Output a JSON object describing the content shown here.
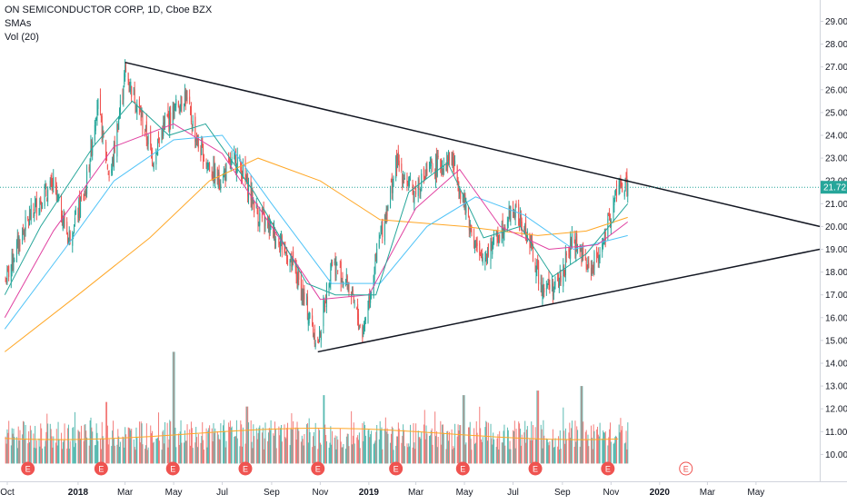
{
  "legend": {
    "symbol_line": "ON SEMICONDUCTOR CORP, 1D, Cboe BZX",
    "indicator_1": "SMAs",
    "indicator_2": "Vol (20)"
  },
  "price_axis": {
    "ticks": [
      "29.00",
      "28.00",
      "27.00",
      "26.00",
      "25.00",
      "24.00",
      "23.00",
      "22.00",
      "21.00",
      "20.00",
      "19.00",
      "18.00",
      "17.00",
      "16.00",
      "15.00",
      "14.00",
      "13.00",
      "12.00",
      "11.00",
      "10.00"
    ],
    "last_price_label": "21.72"
  },
  "time_axis": {
    "ticks": [
      "Oct",
      "2018",
      "Mar",
      "May",
      "Jul",
      "Sep",
      "Nov",
      "2019",
      "Mar",
      "May",
      "Jul",
      "Sep",
      "Nov",
      "2020",
      "Mar",
      "May"
    ]
  },
  "earnings_marker_label": "E",
  "colors": {
    "up": "#26a69a",
    "down": "#ef5350",
    "vol_up": "#26a69a",
    "vol_down": "#ef5350",
    "sma_teal": "#26a69a",
    "sma_pink": "#e040a0",
    "sma_blue": "#4fc3f7",
    "sma_orange": "#ffa726",
    "trendline": "#131722",
    "last_price_bg": "#26a69a",
    "earnings_past": "#ef5350",
    "earnings_future": "#ef5350"
  },
  "chart_data": {
    "type": "candlestick",
    "symbol": "ON SEMICONDUCTOR CORP",
    "interval": "1D",
    "exchange": "Cboe BZX",
    "y_range": [
      9.5,
      29.5
    ],
    "last_price": 21.72,
    "price_path": [
      [
        "2017-10-01",
        17.5
      ],
      [
        "2017-10-20",
        19.5
      ],
      [
        "2017-11-10",
        21.0
      ],
      [
        "2017-12-01",
        21.8
      ],
      [
        "2017-12-20",
        19.5
      ],
      [
        "2018-01-10",
        21.5
      ],
      [
        "2018-01-25",
        25.5
      ],
      [
        "2018-02-10",
        22.0
      ],
      [
        "2018-03-01",
        26.8
      ],
      [
        "2018-03-15",
        25.5
      ],
      [
        "2018-04-05",
        23.0
      ],
      [
        "2018-04-20",
        24.5
      ],
      [
        "2018-05-15",
        25.8
      ],
      [
        "2018-06-01",
        23.5
      ],
      [
        "2018-06-25",
        22.0
      ],
      [
        "2018-07-20",
        23.0
      ],
      [
        "2018-08-15",
        20.5
      ],
      [
        "2018-09-10",
        19.5
      ],
      [
        "2018-10-01",
        18.0
      ],
      [
        "2018-10-29",
        14.8
      ],
      [
        "2018-11-15",
        18.5
      ],
      [
        "2018-12-05",
        17.5
      ],
      [
        "2018-12-24",
        15.3
      ],
      [
        "2019-01-15",
        19.5
      ],
      [
        "2019-02-05",
        22.8
      ],
      [
        "2019-02-25",
        21.5
      ],
      [
        "2019-03-20",
        22.5
      ],
      [
        "2019-04-15",
        23.0
      ],
      [
        "2019-05-05",
        20.5
      ],
      [
        "2019-05-20",
        18.5
      ],
      [
        "2019-06-10",
        19.5
      ],
      [
        "2019-07-01",
        20.8
      ],
      [
        "2019-07-20",
        19.5
      ],
      [
        "2019-08-05",
        17.5
      ],
      [
        "2019-08-25",
        17.3
      ],
      [
        "2019-09-15",
        19.5
      ],
      [
        "2019-10-05",
        18.0
      ],
      [
        "2019-10-25",
        19.5
      ],
      [
        "2019-11-10",
        21.8
      ],
      [
        "2019-11-22",
        21.72
      ]
    ],
    "sma_series": [
      {
        "points": [
          [
            "2017-10-01",
            14.5
          ],
          [
            "2018-01-01",
            17.0
          ],
          [
            "2018-04-01",
            19.5
          ],
          [
            "2018-06-15",
            22.0
          ],
          [
            "2018-08-15",
            23.0
          ],
          [
            "2018-11-01",
            22.0
          ],
          [
            "2019-01-15",
            20.3
          ],
          [
            "2019-05-01",
            20.0
          ],
          [
            "2019-08-01",
            19.6
          ],
          [
            "2019-10-01",
            19.8
          ],
          [
            "2019-11-22",
            20.4
          ]
        ]
      },
      {
        "points": [
          [
            "2017-10-01",
            15.5
          ],
          [
            "2017-12-15",
            19.0
          ],
          [
            "2018-02-15",
            22.0
          ],
          [
            "2018-05-01",
            23.8
          ],
          [
            "2018-07-01",
            24.0
          ],
          [
            "2018-09-01",
            21.0
          ],
          [
            "2018-11-15",
            17.5
          ],
          [
            "2019-01-15",
            17.5
          ],
          [
            "2019-03-15",
            20.0
          ],
          [
            "2019-05-15",
            21.3
          ],
          [
            "2019-07-15",
            20.5
          ],
          [
            "2019-09-15",
            19.0
          ],
          [
            "2019-11-22",
            19.6
          ]
        ]
      },
      {
        "points": [
          [
            "2017-10-01",
            16.0
          ],
          [
            "2017-12-01",
            19.8
          ],
          [
            "2018-02-15",
            23.5
          ],
          [
            "2018-05-01",
            24.5
          ],
          [
            "2018-07-01",
            23.2
          ],
          [
            "2018-09-01",
            20.0
          ],
          [
            "2018-11-01",
            16.8
          ],
          [
            "2019-01-01",
            17.0
          ],
          [
            "2019-03-01",
            20.8
          ],
          [
            "2019-04-25",
            22.5
          ],
          [
            "2019-06-15",
            20.0
          ],
          [
            "2019-08-15",
            19.0
          ],
          [
            "2019-10-15",
            19.2
          ],
          [
            "2019-11-22",
            20.2
          ]
        ]
      },
      {
        "points": [
          [
            "2017-10-01",
            17.0
          ],
          [
            "2017-11-15",
            20.0
          ],
          [
            "2018-01-20",
            23.5
          ],
          [
            "2018-03-10",
            25.5
          ],
          [
            "2018-04-25",
            24.0
          ],
          [
            "2018-06-10",
            24.5
          ],
          [
            "2018-08-10",
            21.5
          ],
          [
            "2018-10-15",
            17.5
          ],
          [
            "2018-11-20",
            17.0
          ],
          [
            "2019-01-10",
            17.0
          ],
          [
            "2019-02-20",
            21.5
          ],
          [
            "2019-04-10",
            22.8
          ],
          [
            "2019-05-25",
            19.5
          ],
          [
            "2019-07-10",
            20.0
          ],
          [
            "2019-08-20",
            17.8
          ],
          [
            "2019-10-01",
            18.8
          ],
          [
            "2019-11-22",
            21.0
          ]
        ]
      }
    ],
    "trendlines": [
      {
        "from": [
          "2018-03-01",
          27.2
        ],
        "to": [
          "2020-07-20",
          20.0
        ]
      },
      {
        "from": [
          "2018-10-29",
          14.5
        ],
        "to": [
          "2020-07-20",
          19.0
        ]
      }
    ],
    "earnings_dates": [
      "2017-10-30",
      "2018-01-30",
      "2018-04-30",
      "2018-07-30",
      "2018-10-29",
      "2019-02-04",
      "2019-04-29",
      "2019-07-29",
      "2019-10-28",
      "2020-02-03"
    ],
    "volume": {
      "name": "Vol (20)",
      "spikes": [
        [
          "2018-05-01",
          14.5
        ],
        [
          "2019-08-01",
          12.8
        ],
        [
          "2018-11-05",
          12.6
        ],
        [
          "2019-04-30",
          12.6
        ],
        [
          "2019-09-25",
          13.0
        ],
        [
          "2018-02-05",
          12.3
        ],
        [
          "2018-08-01",
          12.1
        ]
      ]
    }
  }
}
